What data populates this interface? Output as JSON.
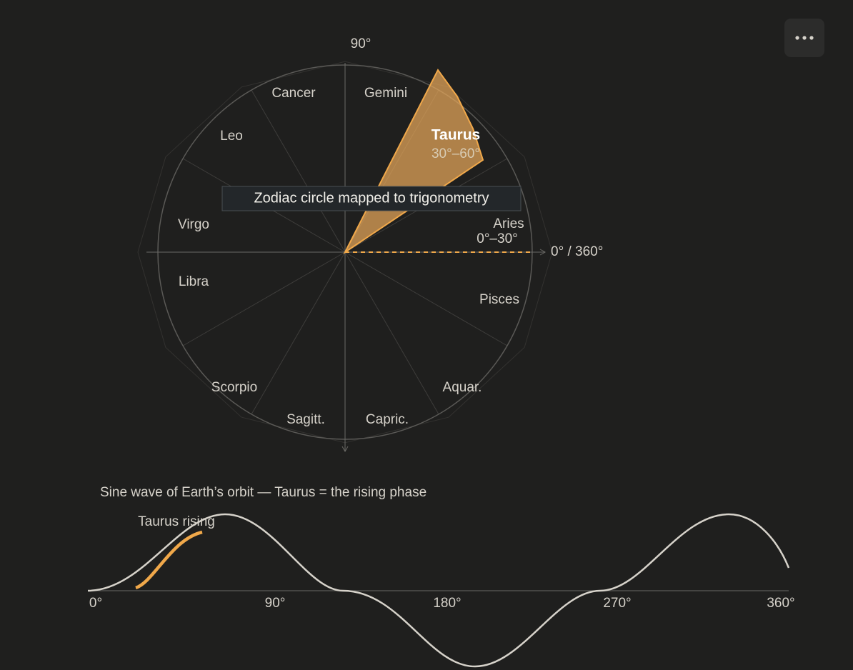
{
  "axis": {
    "top": "90°",
    "right": "0° / 360°"
  },
  "signs": [
    {
      "name": "Aries",
      "range": "0°–30°"
    },
    {
      "name": "Taurus",
      "range": "30°–60°"
    },
    {
      "name": "Gemini"
    },
    {
      "name": "Cancer"
    },
    {
      "name": "Leo"
    },
    {
      "name": "Virgo"
    },
    {
      "name": "Libra"
    },
    {
      "name": "Scorpio"
    },
    {
      "name": "Sagitt."
    },
    {
      "name": "Capric."
    },
    {
      "name": "Aquar."
    },
    {
      "name": "Pisces"
    }
  ],
  "tooltip": "Zodiac circle mapped to trigonometry",
  "wave": {
    "title": "Sine wave of Earth’s orbit — Taurus = the rising phase",
    "highlight": "Taurus rising",
    "ticks": [
      "0°",
      "90°",
      "180°",
      "270°",
      "360°"
    ]
  }
}
